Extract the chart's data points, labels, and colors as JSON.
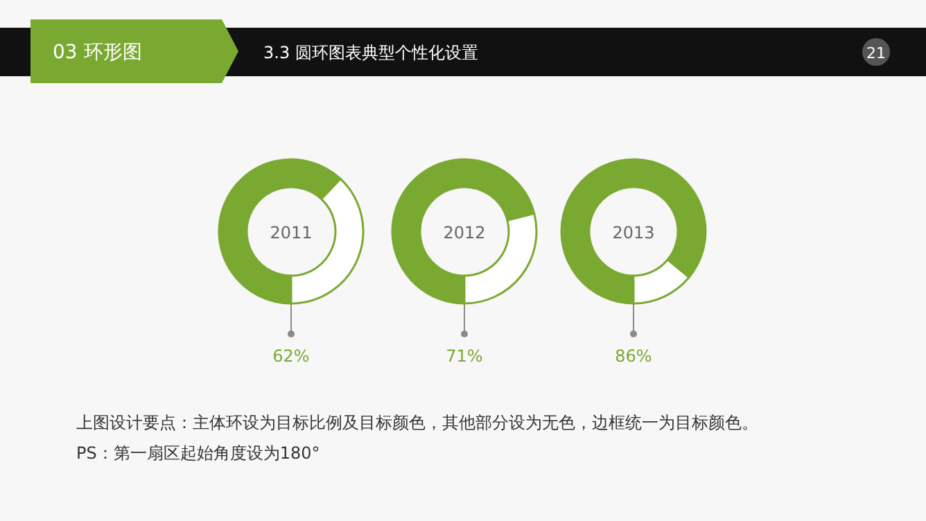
{
  "chart_data": [
    {
      "type": "donut",
      "title": "2011",
      "categories": [
        null,
        null
      ],
      "values": [
        62,
        38
      ],
      "colors": [
        "#7aa932",
        "#ffffff"
      ],
      "value_labels": [
        "62%",
        null
      ],
      "annotations": [
        "03 环形图",
        "3.3  圆环图表典型个性化设置",
        "21",
        "上图设计要点：主体环设为目标比例及目标颜色，其他部分设为无色，边框统一为目标颜色。",
        "PS：第一扇区起始角度设为180°"
      ]
    },
    {
      "type": "donut",
      "title": "2012",
      "categories": [
        null,
        null
      ],
      "values": [
        71,
        29
      ],
      "colors": [
        "#7aa932",
        "#ffffff"
      ],
      "value_labels": [
        "71%",
        null
      ]
    },
    {
      "type": "donut",
      "title": "2013",
      "categories": [
        null,
        null
      ],
      "values": [
        86,
        14
      ],
      "colors": [
        "#7aa932",
        "#ffffff"
      ],
      "value_labels": [
        "86%",
        null
      ]
    }
  ]
}
